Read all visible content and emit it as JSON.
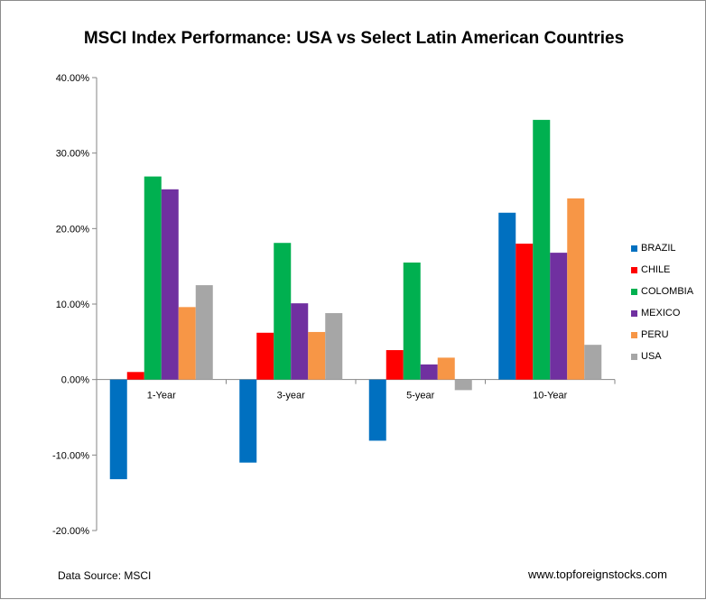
{
  "chart_data": {
    "type": "bar",
    "title": "MSCI Index Performance:  USA vs Select Latin American Countries",
    "categories": [
      "1-Year",
      "3-year",
      "5-year",
      "10-Year"
    ],
    "y_tick_labels": [
      "40.00%",
      "30.00%",
      "20.00%",
      "10.00%",
      "0.00%",
      "-10.00%",
      "-20.00%"
    ],
    "y_ticks": [
      40,
      30,
      20,
      10,
      0,
      -10,
      -20
    ],
    "ylim": [
      -20,
      40
    ],
    "y_unit": "%",
    "legend_position": "right",
    "grid": false,
    "series": [
      {
        "name": "BRAZIL",
        "color": "#0070C0",
        "values": [
          -13.2,
          -11.0,
          -8.1,
          22.1
        ]
      },
      {
        "name": "CHILE",
        "color": "#FF0000",
        "values": [
          1.0,
          6.2,
          3.9,
          18.0
        ]
      },
      {
        "name": "COLOMBIA",
        "color": "#00B050",
        "values": [
          26.9,
          18.1,
          15.5,
          34.4
        ]
      },
      {
        "name": "MEXICO",
        "color": "#7030A0",
        "values": [
          25.2,
          10.1,
          2.0,
          16.8
        ]
      },
      {
        "name": "PERU",
        "color": "#F79646",
        "values": [
          9.6,
          6.3,
          2.9,
          24.0
        ]
      },
      {
        "name": "USA",
        "color": "#A6A6A6",
        "values": [
          12.5,
          8.8,
          -1.4,
          4.6
        ]
      }
    ]
  },
  "footer": {
    "source": "Data Source: MSCI",
    "website": "www.topforeignstocks.com"
  }
}
